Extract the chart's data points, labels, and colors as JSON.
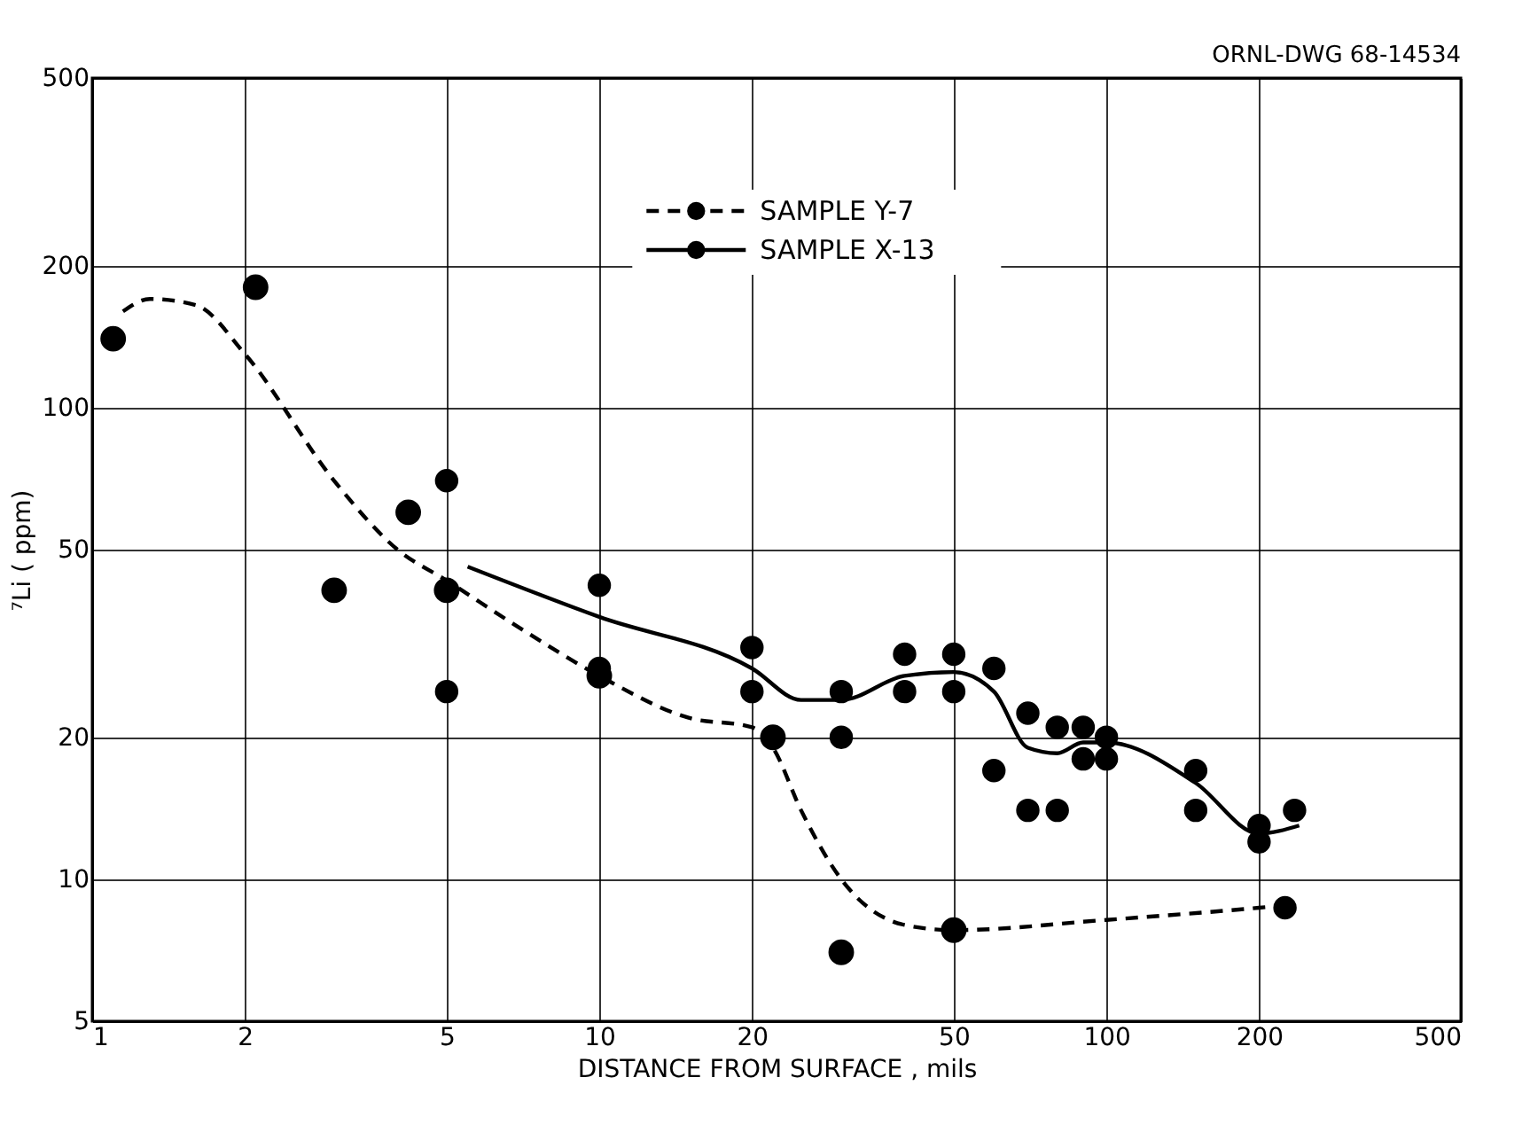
{
  "chart_data": {
    "type": "scatter",
    "xlabel": "DISTANCE  FROM  SURFACE , mils",
    "ylabel": "⁷Li ( ppm)",
    "annotations": [
      "ORNL-DWG 68-14534"
    ],
    "log": "xy",
    "xlim": [
      1,
      500
    ],
    "ylim": [
      5,
      500
    ],
    "xticks": [
      1,
      2,
      5,
      10,
      20,
      50,
      100,
      200,
      500
    ],
    "yticks": [
      5,
      10,
      20,
      50,
      100,
      200,
      500
    ],
    "grid": true,
    "legend": "top",
    "series": [
      {
        "name": "SAMPLE Y-7",
        "type": "scatter",
        "color": "#000000",
        "marker": "circle",
        "line_style": "dashed",
        "x": [
          1.1,
          2.1,
          3,
          4.2,
          5,
          10,
          22,
          30,
          50
        ],
        "values": [
          140,
          180,
          41,
          60,
          41,
          27,
          20,
          7,
          7.8
        ]
      },
      {
        "name": "SAMPLE X-13",
        "type": "scatter",
        "color": "#000000",
        "marker": "circle",
        "line_style": "solid",
        "x": [
          5,
          5,
          10,
          10,
          20,
          20,
          30,
          30,
          40,
          40,
          50,
          50,
          60,
          60,
          70,
          70,
          80,
          80,
          90,
          90,
          100,
          100,
          150,
          150,
          200,
          200,
          235,
          225
        ],
        "values": [
          70,
          25,
          42,
          28,
          31,
          25,
          25,
          20,
          30,
          25,
          30,
          25,
          28,
          17,
          22.5,
          14,
          21,
          14,
          21,
          18,
          20,
          18,
          17,
          14,
          13,
          12,
          14,
          8.7
        ]
      },
      {
        "type": "line",
        "color": "#000000",
        "line_style": "dashed",
        "marker": "none",
        "x": [
          1.15,
          1.3,
          1.6,
          2,
          3,
          4,
          5,
          7,
          10,
          15,
          20,
          22,
          25,
          30,
          40,
          50,
          100,
          200,
          225
        ],
        "values": [
          160,
          170,
          165,
          130,
          70,
          50,
          43,
          34,
          27,
          22,
          21,
          19,
          14,
          10,
          8,
          7.8,
          8.2,
          8.7,
          8.8
        ]
      },
      {
        "type": "line",
        "color": "#000000",
        "line_style": "solid",
        "marker": "none",
        "x": [
          5.5,
          10,
          20,
          25,
          30,
          40,
          50,
          60,
          70,
          80,
          90,
          100,
          150,
          200,
          240
        ],
        "values": [
          46,
          36,
          28,
          24,
          24,
          27,
          27.5,
          25,
          19,
          18.5,
          19.5,
          19.5,
          16,
          12.5,
          13
        ]
      }
    ]
  }
}
